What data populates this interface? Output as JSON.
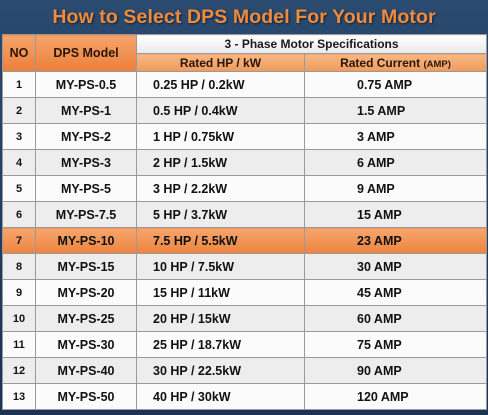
{
  "title": "How to Select DPS Model For Your Motor",
  "headers": {
    "no": "NO",
    "model": "DPS Model",
    "spec_group": "3 - Phase Motor Specifications",
    "hp": "Rated HP / kW",
    "current": "Rated Current",
    "current_unit": "(AMP)"
  },
  "rows": [
    {
      "no": "1",
      "model": "MY-PS-0.5",
      "hp": "0.25 HP / 0.2kW",
      "current": "0.75 AMP"
    },
    {
      "no": "2",
      "model": "MY-PS-1",
      "hp": "0.5 HP / 0.4kW",
      "current": "1.5 AMP"
    },
    {
      "no": "3",
      "model": "MY-PS-2",
      "hp": "1 HP / 0.75kW",
      "current": "3 AMP"
    },
    {
      "no": "4",
      "model": "MY-PS-3",
      "hp": "2 HP / 1.5kW",
      "current": "6 AMP"
    },
    {
      "no": "5",
      "model": "MY-PS-5",
      "hp": "3 HP / 2.2kW",
      "current": "9 AMP"
    },
    {
      "no": "6",
      "model": "MY-PS-7.5",
      "hp": "5 HP / 3.7kW",
      "current": "15 AMP"
    },
    {
      "no": "7",
      "model": "MY-PS-10",
      "hp": "7.5 HP / 5.5kW",
      "current": "23 AMP"
    },
    {
      "no": "8",
      "model": "MY-PS-15",
      "hp": "10 HP / 7.5kW",
      "current": "30 AMP"
    },
    {
      "no": "9",
      "model": "MY-PS-20",
      "hp": "15 HP / 11kW",
      "current": "45 AMP"
    },
    {
      "no": "10",
      "model": "MY-PS-25",
      "hp": "20 HP / 15kW",
      "current": "60 AMP"
    },
    {
      "no": "11",
      "model": "MY-PS-30",
      "hp": "25 HP / 18.7kW",
      "current": "75 AMP"
    },
    {
      "no": "12",
      "model": "MY-PS-40",
      "hp": "30 HP / 22.5kW",
      "current": "90 AMP"
    },
    {
      "no": "13",
      "model": "MY-PS-50",
      "hp": "40 HP / 30kW",
      "current": "120 AMP"
    }
  ],
  "highlighted_row": "7",
  "colors": {
    "background": "#1f3a5c",
    "title": "#f08a3c",
    "accent": "#ec7f39"
  }
}
